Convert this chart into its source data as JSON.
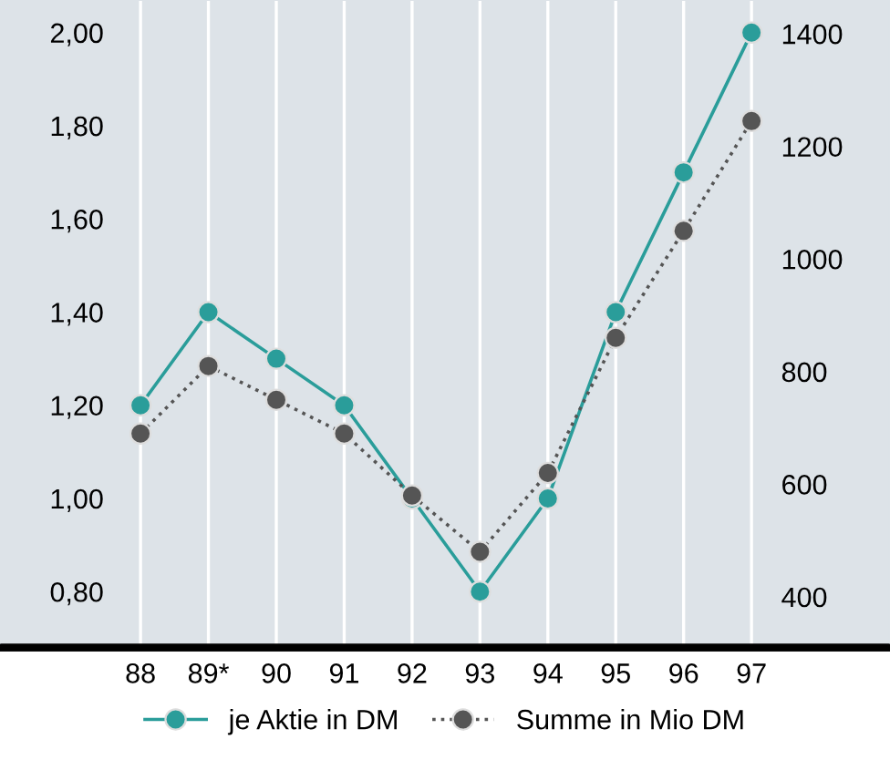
{
  "chart_data": {
    "type": "line",
    "categories": [
      "88",
      "89*",
      "90",
      "91",
      "92",
      "93",
      "94",
      "95",
      "96",
      "97"
    ],
    "series": [
      {
        "name": "je Aktie in DM",
        "color": "#2a9d9a",
        "values": [
          1.2,
          1.4,
          1.3,
          1.2,
          1.0,
          0.8,
          1.0,
          1.4,
          1.7,
          2.0
        ],
        "line_style": "solid"
      },
      {
        "name": "Summe in Mio DM",
        "color": "#555555",
        "values": [
          690,
          810,
          750,
          690,
          580,
          480,
          620,
          860,
          1050,
          1245
        ],
        "axis": "y2",
        "line_style": "dotted"
      }
    ],
    "ylim": [
      0.68,
      2.07
    ],
    "yticks": [
      {
        "value": 0.8,
        "label": "0,80"
      },
      {
        "value": 1.0,
        "label": "1,00"
      },
      {
        "value": 1.2,
        "label": "1,20"
      },
      {
        "value": 1.4,
        "label": "1,40"
      },
      {
        "value": 1.6,
        "label": "1,60"
      },
      {
        "value": 1.8,
        "label": "1,80"
      },
      {
        "value": 2.0,
        "label": "2,00"
      }
    ],
    "y2lim": [
      310,
      1460
    ],
    "y2ticks": [
      400,
      600,
      800,
      1000,
      1200,
      1400
    ],
    "grid": "x",
    "legend": "bottom",
    "marker": "circle"
  }
}
